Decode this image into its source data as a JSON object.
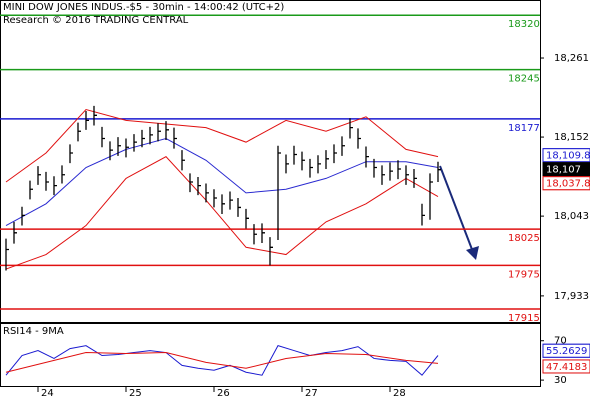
{
  "chart_data": [
    {
      "type": "ohlc",
      "title": "MINI DOW JONES INDUS.-$5 - 30min - 14:00:42 (UTC+2)",
      "subtitle": "Research © 2016 TRADING CENTRAL",
      "categories": [
        null,
        null,
        null,
        null,
        null,
        "24",
        null,
        null,
        null,
        null,
        null,
        null,
        null,
        null,
        null,
        null,
        "25",
        null,
        null,
        null,
        null,
        null,
        null,
        null,
        null,
        null,
        null,
        "26",
        null,
        null,
        null,
        null,
        null,
        null,
        null,
        null,
        null,
        null,
        "27",
        null,
        null,
        null,
        null,
        null,
        null,
        null,
        null,
        null,
        null,
        "28",
        null,
        null,
        null,
        null,
        null
      ],
      "high": [
        18012,
        18035,
        18056,
        18092,
        18112,
        18104,
        18098,
        18113,
        18142,
        18172,
        18188,
        18195,
        18166,
        18146,
        18152,
        18150,
        18156,
        18162,
        18166,
        18171,
        18174,
        18165,
        18134,
        18102,
        18097,
        18088,
        18080,
        18073,
        18077,
        18068,
        18053,
        18032,
        18033,
        18014,
        18140,
        18128,
        18140,
        18132,
        18122,
        18127,
        18134,
        18142,
        18153,
        18178,
        18164,
        18139,
        18122,
        18113,
        18117,
        18120,
        18113,
        18108,
        18060,
        18102,
        18118
      ],
      "low": [
        17968,
        18005,
        18030,
        18066,
        18086,
        18078,
        18072,
        18088,
        18116,
        18146,
        18162,
        18168,
        18138,
        18120,
        18126,
        18124,
        18132,
        18138,
        18142,
        18146,
        18148,
        18136,
        18106,
        18076,
        18072,
        18062,
        18055,
        18046,
        18052,
        18042,
        18026,
        18004,
        18006,
        17975,
        18010,
        18102,
        18114,
        18106,
        18096,
        18102,
        18108,
        18116,
        18126,
        18150,
        18136,
        18110,
        18096,
        18086,
        18092,
        18094,
        18086,
        18082,
        18030,
        18038,
        18090
      ],
      "close": [
        17997,
        18020,
        18044,
        18080,
        18100,
        18090,
        18085,
        18100,
        18130,
        18160,
        18175,
        18182,
        18150,
        18134,
        18140,
        18138,
        18145,
        18150,
        18155,
        18160,
        18162,
        18150,
        18120,
        18090,
        18085,
        18075,
        18068,
        18060,
        18065,
        18055,
        18040,
        18018,
        18020,
        18000,
        18130,
        18115,
        18128,
        18120,
        18110,
        18115,
        18122,
        18130,
        18140,
        18165,
        18150,
        18125,
        18110,
        18100,
        18105,
        18108,
        18100,
        18095,
        18044,
        18090,
        18107
      ],
      "xlim": [
        -0.75,
        66.75
      ],
      "ylim": [
        17897,
        18341
      ],
      "yticks": [
        {
          "value": 18261,
          "label": "18,261"
        },
        {
          "value": 18152,
          "label": "18,152"
        },
        {
          "value": 18043,
          "label": "18,043"
        },
        {
          "value": 17933,
          "label": "17,933"
        }
      ],
      "bar_color": "#000000",
      "overlays": [
        {
          "color": "#2a2ad0",
          "x": [
            0,
            5,
            10,
            15,
            20,
            25,
            30,
            35,
            40,
            45,
            50,
            54
          ],
          "values": [
            18030,
            18060,
            18110,
            18135,
            18150,
            18120,
            18075,
            18080,
            18095,
            18118,
            18118,
            18110
          ]
        },
        {
          "color": "#e01010",
          "x": [
            0,
            5,
            10,
            15,
            20,
            25,
            30,
            35,
            40,
            45,
            50,
            54
          ],
          "values": [
            18090,
            18130,
            18190,
            18175,
            18170,
            18165,
            18145,
            18175,
            18160,
            18180,
            18135,
            18125
          ]
        },
        {
          "color": "#e01010",
          "x": [
            0,
            5,
            10,
            15,
            20,
            25,
            30,
            35,
            40,
            45,
            50,
            54
          ],
          "values": [
            17970,
            17990,
            18030,
            18095,
            18125,
            18065,
            18000,
            17990,
            18035,
            18060,
            18095,
            18070
          ]
        }
      ],
      "levels": [
        {
          "value": 18320,
          "color": "#1a9a1a"
        },
        {
          "value": 18245,
          "color": "#1a9a1a"
        },
        {
          "value": 18177,
          "color": "#1a1ad0"
        },
        {
          "value": 18025,
          "color": "#e01010"
        },
        {
          "value": 17975,
          "color": "#e01010"
        },
        {
          "value": 17915,
          "color": "#e01010"
        }
      ],
      "price_tags": [
        {
          "value": 18109.8,
          "label": "18,109.8",
          "color": "#1a1ad0"
        },
        {
          "value": 18107,
          "label": "18,107",
          "color": "#000000"
        },
        {
          "value": 18037.8,
          "label": "18,037.8",
          "color": "#e01010"
        }
      ]
    },
    {
      "type": "line",
      "title": "RSI14 - 9MA",
      "xlim": [
        -0.75,
        66.75
      ],
      "ylim": [
        23,
        87
      ],
      "yticks": [
        70,
        30
      ],
      "series": [
        {
          "color": "#1a1ad0",
          "x": [
            0,
            2,
            4,
            6,
            8,
            10,
            12,
            14,
            16,
            18,
            20,
            22,
            24,
            26,
            28,
            30,
            32,
            34,
            36,
            38,
            40,
            42,
            44,
            46,
            48,
            50,
            52,
            54
          ],
          "values": [
            35,
            55,
            60,
            52,
            62,
            65,
            55,
            56,
            58,
            60,
            58,
            45,
            42,
            40,
            45,
            38,
            35,
            65,
            60,
            55,
            58,
            60,
            64,
            52,
            50,
            49,
            35,
            55
          ]
        },
        {
          "color": "#e01010",
          "x": [
            0,
            5,
            10,
            15,
            20,
            25,
            30,
            35,
            40,
            45,
            50,
            54
          ],
          "values": [
            38,
            48,
            58,
            57,
            58,
            48,
            42,
            52,
            57,
            56,
            50,
            47
          ]
        }
      ],
      "price_tags": [
        {
          "value": 55.2629,
          "label": "55.2629",
          "color": "#1a1ad0"
        },
        {
          "value": 47.4183,
          "label": "47.4183",
          "color": "#e01010"
        }
      ]
    }
  ]
}
